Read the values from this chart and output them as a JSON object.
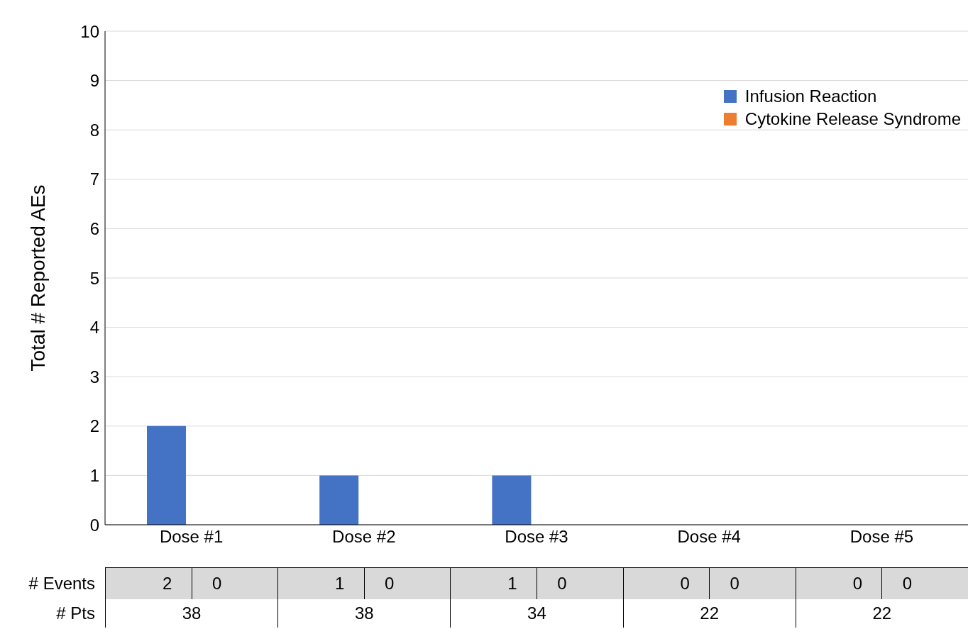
{
  "chart_data": {
    "type": "bar",
    "ylabel": "Total # Reported AEs",
    "categories": [
      "Dose #1",
      "Dose #2",
      "Dose #3",
      "Dose #4",
      "Dose #5"
    ],
    "series": [
      {
        "name": "Infusion Reaction",
        "color": "#4472c4",
        "values": [
          2,
          1,
          1,
          0,
          0
        ]
      },
      {
        "name": "Cytokine Release Syndrome",
        "color": "#ed7d31",
        "values": [
          0,
          0,
          0,
          0,
          0
        ]
      }
    ],
    "ylim": [
      0,
      10
    ],
    "yticks": [
      0,
      1,
      2,
      3,
      4,
      5,
      6,
      7,
      8,
      9,
      10
    ],
    "grid": "y",
    "legend": "top right",
    "annotations": [
      "# Events",
      "# Pts",
      "2",
      "0",
      "1",
      "0",
      "1",
      "0",
      "0",
      "0",
      "0",
      "0",
      "38",
      "38",
      "34",
      "22",
      "22"
    ]
  }
}
